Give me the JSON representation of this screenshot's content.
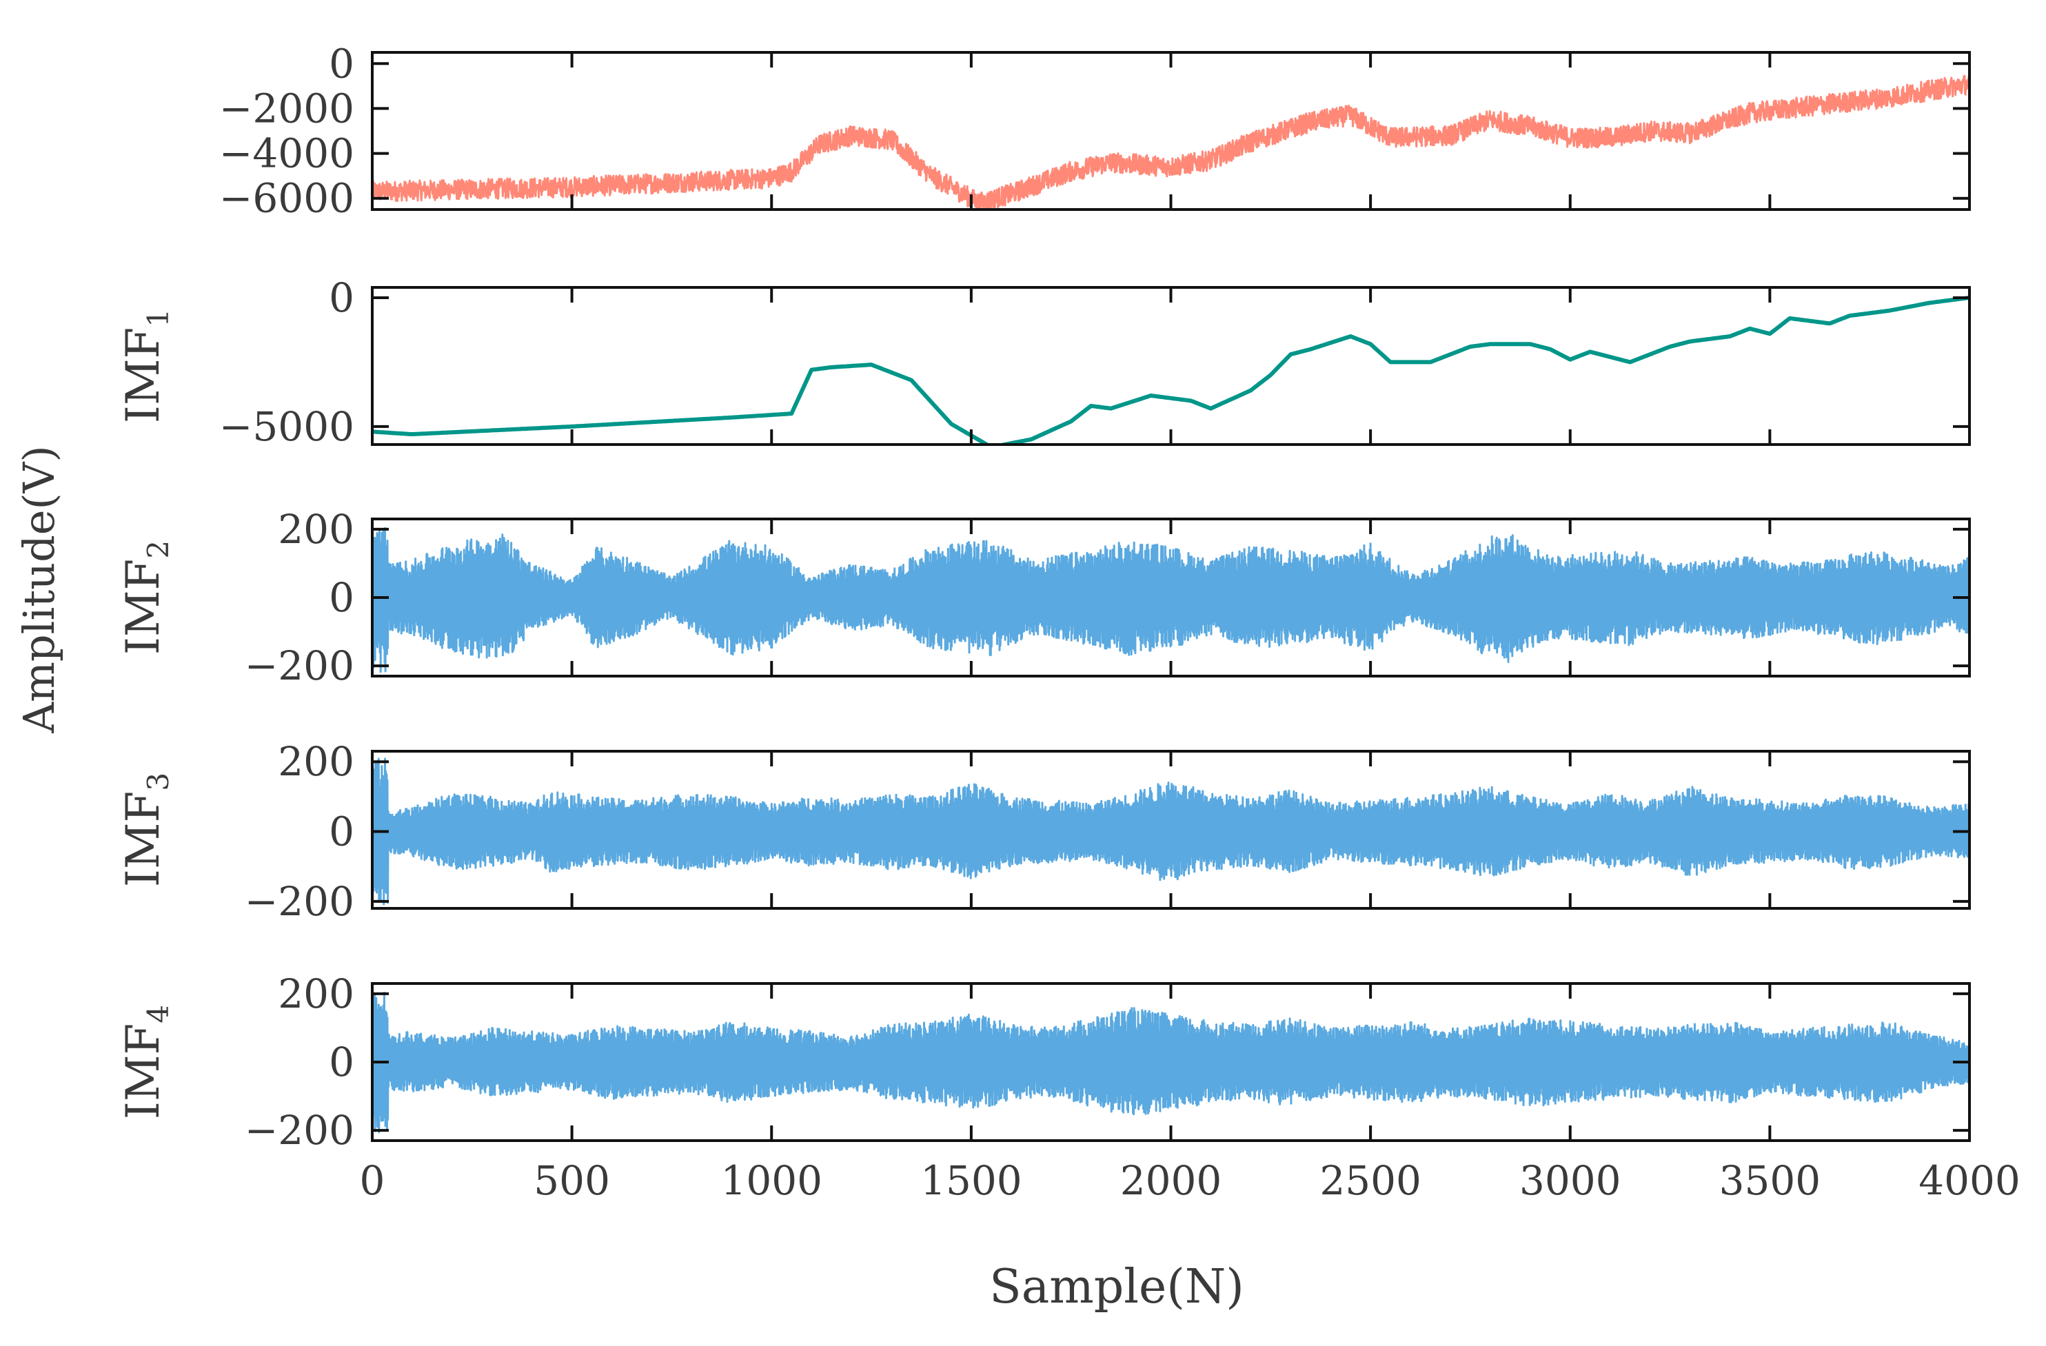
{
  "figure": {
    "xlabel": "Sample(N)",
    "ylabel": "Amplitude(V)"
  },
  "chart_data": {
    "type": "line",
    "x_range": [
      0,
      4000
    ],
    "x_ticks": [
      0,
      500,
      1000,
      1500,
      2000,
      2500,
      3000,
      3500,
      4000
    ],
    "x_tick_labels": [
      "0",
      "500",
      "1000",
      "1500",
      "2000",
      "2500",
      "3000",
      "3500",
      "4000"
    ],
    "panels": [
      {
        "id": "original",
        "label_base": "",
        "label_sub": "",
        "color": "#ff8877",
        "ylim": [
          -6500,
          500
        ],
        "y_ticks": [
          -6000,
          -4000,
          -2000,
          0
        ],
        "y_tick_labels": [
          "−6000",
          "−4000",
          "−2000",
          "0"
        ],
        "trend_x": [
          0,
          500,
          1000,
          1050,
          1120,
          1200,
          1300,
          1400,
          1520,
          1600,
          1750,
          1850,
          2000,
          2100,
          2200,
          2350,
          2450,
          2550,
          2700,
          2800,
          2900,
          3000,
          3100,
          3200,
          3300,
          3450,
          3550,
          3700,
          3800,
          3900,
          4000
        ],
        "trend_y": [
          -5700,
          -5500,
          -5100,
          -4800,
          -3600,
          -3200,
          -3400,
          -5000,
          -6200,
          -5800,
          -4800,
          -4400,
          -4600,
          -4300,
          -3500,
          -2600,
          -2300,
          -3300,
          -3200,
          -2500,
          -2800,
          -3300,
          -3300,
          -3000,
          -3100,
          -2200,
          -2000,
          -1700,
          -1500,
          -1200,
          -900
        ],
        "noise_amplitude": 450
      },
      {
        "id": "imf1",
        "label_base": "IMF",
        "label_sub": "1",
        "color": "#009689",
        "ylim": [
          -5700,
          400
        ],
        "y_ticks": [
          -5000,
          0
        ],
        "y_tick_labels": [
          "−5000",
          "0"
        ],
        "trend_x": [
          0,
          100,
          500,
          900,
          1050,
          1100,
          1150,
          1250,
          1350,
          1450,
          1550,
          1650,
          1750,
          1800,
          1850,
          1950,
          2050,
          2100,
          2200,
          2250,
          2300,
          2350,
          2450,
          2500,
          2550,
          2650,
          2750,
          2800,
          2900,
          2950,
          3000,
          3050,
          3100,
          3150,
          3250,
          3300,
          3400,
          3450,
          3500,
          3550,
          3650,
          3700,
          3800,
          3900,
          4000
        ],
        "trend_y": [
          -5200,
          -5300,
          -5000,
          -4650,
          -4500,
          -2800,
          -2700,
          -2600,
          -3200,
          -4900,
          -5800,
          -5500,
          -4800,
          -4200,
          -4300,
          -3800,
          -4000,
          -4300,
          -3600,
          -3000,
          -2200,
          -2000,
          -1500,
          -1800,
          -2500,
          -2500,
          -1900,
          -1800,
          -1800,
          -2000,
          -2400,
          -2100,
          -2300,
          -2500,
          -1900,
          -1700,
          -1500,
          -1200,
          -1400,
          -800,
          -1000,
          -700,
          -500,
          -200,
          0
        ],
        "noise_amplitude": 0
      },
      {
        "id": "imf2",
        "label_base": "IMF",
        "label_sub": "2",
        "color": "#5aa9e0",
        "ylim": [
          -230,
          230
        ],
        "y_ticks": [
          -200,
          0,
          200
        ],
        "y_tick_labels": [
          "−200",
          "0",
          "200"
        ],
        "start_amplitude": 220,
        "envelope_x": [
          0,
          40,
          100,
          200,
          330,
          400,
          500,
          560,
          640,
          750,
          900,
          1000,
          1100,
          1200,
          1300,
          1400,
          1550,
          1650,
          1800,
          1900,
          2000,
          2100,
          2200,
          2300,
          2400,
          2500,
          2600,
          2700,
          2800,
          2850,
          2950,
          3050,
          3150,
          3250,
          3350,
          3450,
          3550,
          3650,
          3750,
          3850,
          3950,
          4000
        ],
        "envelope_y": [
          150,
          100,
          110,
          160,
          190,
          100,
          50,
          150,
          120,
          60,
          170,
          150,
          60,
          100,
          80,
          150,
          170,
          110,
          140,
          170,
          150,
          110,
          150,
          140,
          120,
          160,
          70,
          110,
          180,
          190,
          120,
          130,
          140,
          100,
          110,
          120,
          100,
          110,
          140,
          120,
          90,
          120
        ]
      },
      {
        "id": "imf3",
        "label_base": "IMF",
        "label_sub": "3",
        "color": "#5aa9e0",
        "ylim": [
          -220,
          230
        ],
        "y_ticks": [
          -200,
          0,
          200
        ],
        "y_tick_labels": [
          "−200",
          "0",
          "200"
        ],
        "start_amplitude": 210,
        "envelope_x": [
          0,
          40,
          100,
          200,
          300,
          400,
          450,
          550,
          650,
          800,
          900,
          1000,
          1100,
          1200,
          1300,
          1400,
          1500,
          1600,
          1700,
          1800,
          1900,
          2000,
          2100,
          2200,
          2300,
          2400,
          2500,
          2600,
          2700,
          2800,
          2900,
          3000,
          3100,
          3200,
          3300,
          3400,
          3500,
          3600,
          3700,
          3800,
          3900,
          4000
        ],
        "envelope_y": [
          100,
          60,
          70,
          110,
          100,
          80,
          120,
          100,
          90,
          110,
          100,
          80,
          100,
          90,
          110,
          100,
          140,
          100,
          90,
          80,
          110,
          150,
          110,
          100,
          120,
          80,
          90,
          100,
          110,
          130,
          100,
          80,
          110,
          90,
          130,
          100,
          90,
          80,
          110,
          100,
          70,
          80
        ]
      },
      {
        "id": "imf4",
        "label_base": "IMF",
        "label_sub": "4",
        "color": "#5aa9e0",
        "ylim": [
          -230,
          230
        ],
        "y_ticks": [
          -200,
          0,
          200
        ],
        "y_tick_labels": [
          "−200",
          "0",
          "200"
        ],
        "start_amplitude": 210,
        "envelope_x": [
          0,
          40,
          100,
          200,
          300,
          400,
          500,
          600,
          700,
          800,
          900,
          1000,
          1100,
          1200,
          1300,
          1400,
          1500,
          1550,
          1600,
          1700,
          1800,
          1900,
          2000,
          2100,
          2200,
          2300,
          2400,
          2500,
          2600,
          2700,
          2800,
          2900,
          3000,
          3100,
          3200,
          3300,
          3400,
          3500,
          3600,
          3700,
          3800,
          3900,
          4000
        ],
        "envelope_y": [
          130,
          80,
          90,
          70,
          100,
          90,
          80,
          110,
          100,
          90,
          120,
          100,
          90,
          80,
          110,
          120,
          140,
          130,
          110,
          100,
          130,
          160,
          140,
          120,
          110,
          130,
          100,
          110,
          120,
          100,
          110,
          130,
          120,
          110,
          100,
          110,
          120,
          90,
          100,
          110,
          120,
          80,
          60
        ]
      }
    ]
  }
}
